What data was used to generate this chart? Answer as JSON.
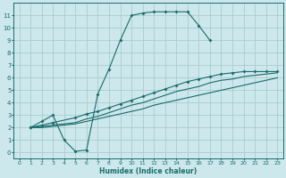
{
  "xlabel": "Humidex (Indice chaleur)",
  "bg_color": "#cce8ec",
  "grid_color": "#aacccc",
  "line_color": "#1a6b6b",
  "xlim": [
    -0.5,
    23.5
  ],
  "ylim": [
    -0.5,
    12
  ],
  "xticks": [
    0,
    1,
    2,
    3,
    4,
    5,
    6,
    7,
    8,
    9,
    10,
    11,
    12,
    13,
    14,
    15,
    16,
    17,
    18,
    19,
    20,
    21,
    22,
    23
  ],
  "yticks": [
    0,
    1,
    2,
    3,
    4,
    5,
    6,
    7,
    8,
    9,
    10,
    11
  ],
  "curve1_x": [
    1,
    2,
    3,
    4,
    5,
    6,
    7,
    8,
    9,
    10,
    11,
    12,
    13,
    14,
    15,
    16,
    17
  ],
  "curve1_y": [
    2,
    2.5,
    3,
    1,
    0.1,
    0.2,
    4.7,
    6.7,
    9,
    11,
    11.2,
    11.3,
    11.3,
    11.3,
    11.3,
    10.2,
    9.0
  ],
  "curve2_x": [
    1,
    2,
    3,
    5,
    6,
    7,
    8,
    9,
    10,
    11,
    12,
    13,
    14,
    15,
    16,
    17,
    18,
    19,
    20,
    21,
    22,
    23
  ],
  "curve2_y": [
    2,
    2.2,
    2.4,
    2.8,
    3.1,
    3.3,
    3.6,
    3.9,
    4.2,
    4.5,
    4.8,
    5.1,
    5.4,
    5.7,
    5.9,
    6.1,
    6.3,
    6.4,
    6.5,
    6.5,
    6.5,
    6.5
  ],
  "curve3_x": [
    1,
    2,
    3,
    5,
    6,
    7,
    8,
    9,
    10,
    11,
    12,
    13,
    14,
    15,
    16,
    17,
    18,
    19,
    20,
    21,
    22,
    23
  ],
  "curve3_y": [
    2,
    2.1,
    2.2,
    2.4,
    2.7,
    2.9,
    3.2,
    3.5,
    3.8,
    4.0,
    4.3,
    4.6,
    4.9,
    5.1,
    5.3,
    5.6,
    5.8,
    5.9,
    6.1,
    6.2,
    6.3,
    6.4
  ],
  "curve4_x": [
    1,
    2,
    3,
    5,
    6,
    7,
    8,
    9,
    10,
    11,
    12,
    13,
    14,
    15,
    16,
    17,
    18,
    19,
    20,
    21,
    22,
    23
  ],
  "curve4_y": [
    2,
    2.0,
    2.1,
    2.3,
    2.5,
    2.7,
    2.9,
    3.1,
    3.3,
    3.5,
    3.8,
    4.0,
    4.2,
    4.4,
    4.6,
    4.8,
    5.0,
    5.2,
    5.4,
    5.6,
    5.8,
    6.0
  ]
}
